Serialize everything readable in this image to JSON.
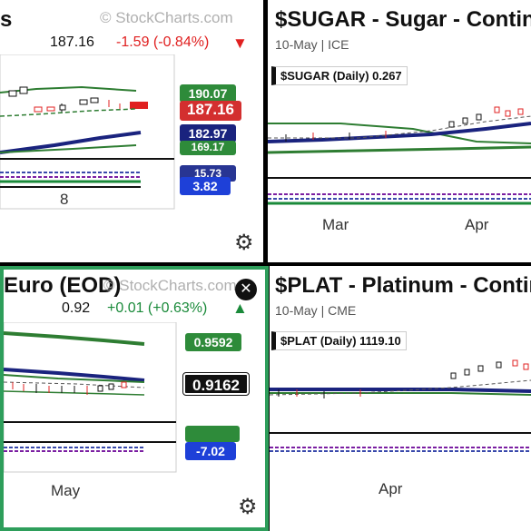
{
  "colors": {
    "up": "#1a8a3a",
    "down": "#e02020",
    "accent": "#2e9e5b",
    "ma_blue": "#1a237e",
    "ma_green": "#2e7d32"
  },
  "panels": [
    {
      "id": "tl",
      "title": "s",
      "watermark": "© StockCharts.com",
      "last": "187.16",
      "change": "-1.59 (-0.84%)",
      "direction": "down",
      "x_label": "8",
      "tags": [
        "190.07",
        "187.16",
        "182.97",
        "169.17",
        "15.73",
        "3.82"
      ]
    },
    {
      "id": "tr",
      "title": "$SUGAR - Sugar - Continuo",
      "subtitle": "10-May | ICE",
      "symbol_label": "$SUGAR (Daily) 0.267",
      "x_labels": [
        "Mar",
        "Apr"
      ]
    },
    {
      "id": "bl",
      "title": "Euro (EOD)",
      "watermark": "© StockCharts.com",
      "last": "0.92",
      "change": "+0.01 (+0.63%)",
      "direction": "up",
      "x_label": "May",
      "tags": [
        "0.9592",
        "0.9162",
        "-7.02"
      ]
    },
    {
      "id": "br",
      "title": "$PLAT - Platinum - Continuo",
      "subtitle": "10-May | CME",
      "symbol_label": "$PLAT (Daily) 1119.10",
      "x_labels": [
        "Apr"
      ]
    }
  ],
  "chart_data": [
    {
      "type": "line",
      "title": "",
      "series": [],
      "tick_labels_x": [
        "8"
      ],
      "value_labels": [
        "190.07",
        "187.16",
        "182.97",
        "169.17",
        "15.73",
        "3.82"
      ]
    },
    {
      "type": "line",
      "title": "$SUGAR (Daily) 0.267",
      "series": [],
      "tick_labels_x": [
        "Mar",
        "Apr"
      ]
    },
    {
      "type": "line",
      "title": "",
      "series": [],
      "tick_labels_x": [
        "May"
      ],
      "value_labels": [
        "0.9592",
        "0.9162",
        "-7.02"
      ]
    },
    {
      "type": "line",
      "title": "$PLAT (Daily) 1119.10",
      "series": [],
      "tick_labels_x": [
        "Apr"
      ]
    }
  ]
}
